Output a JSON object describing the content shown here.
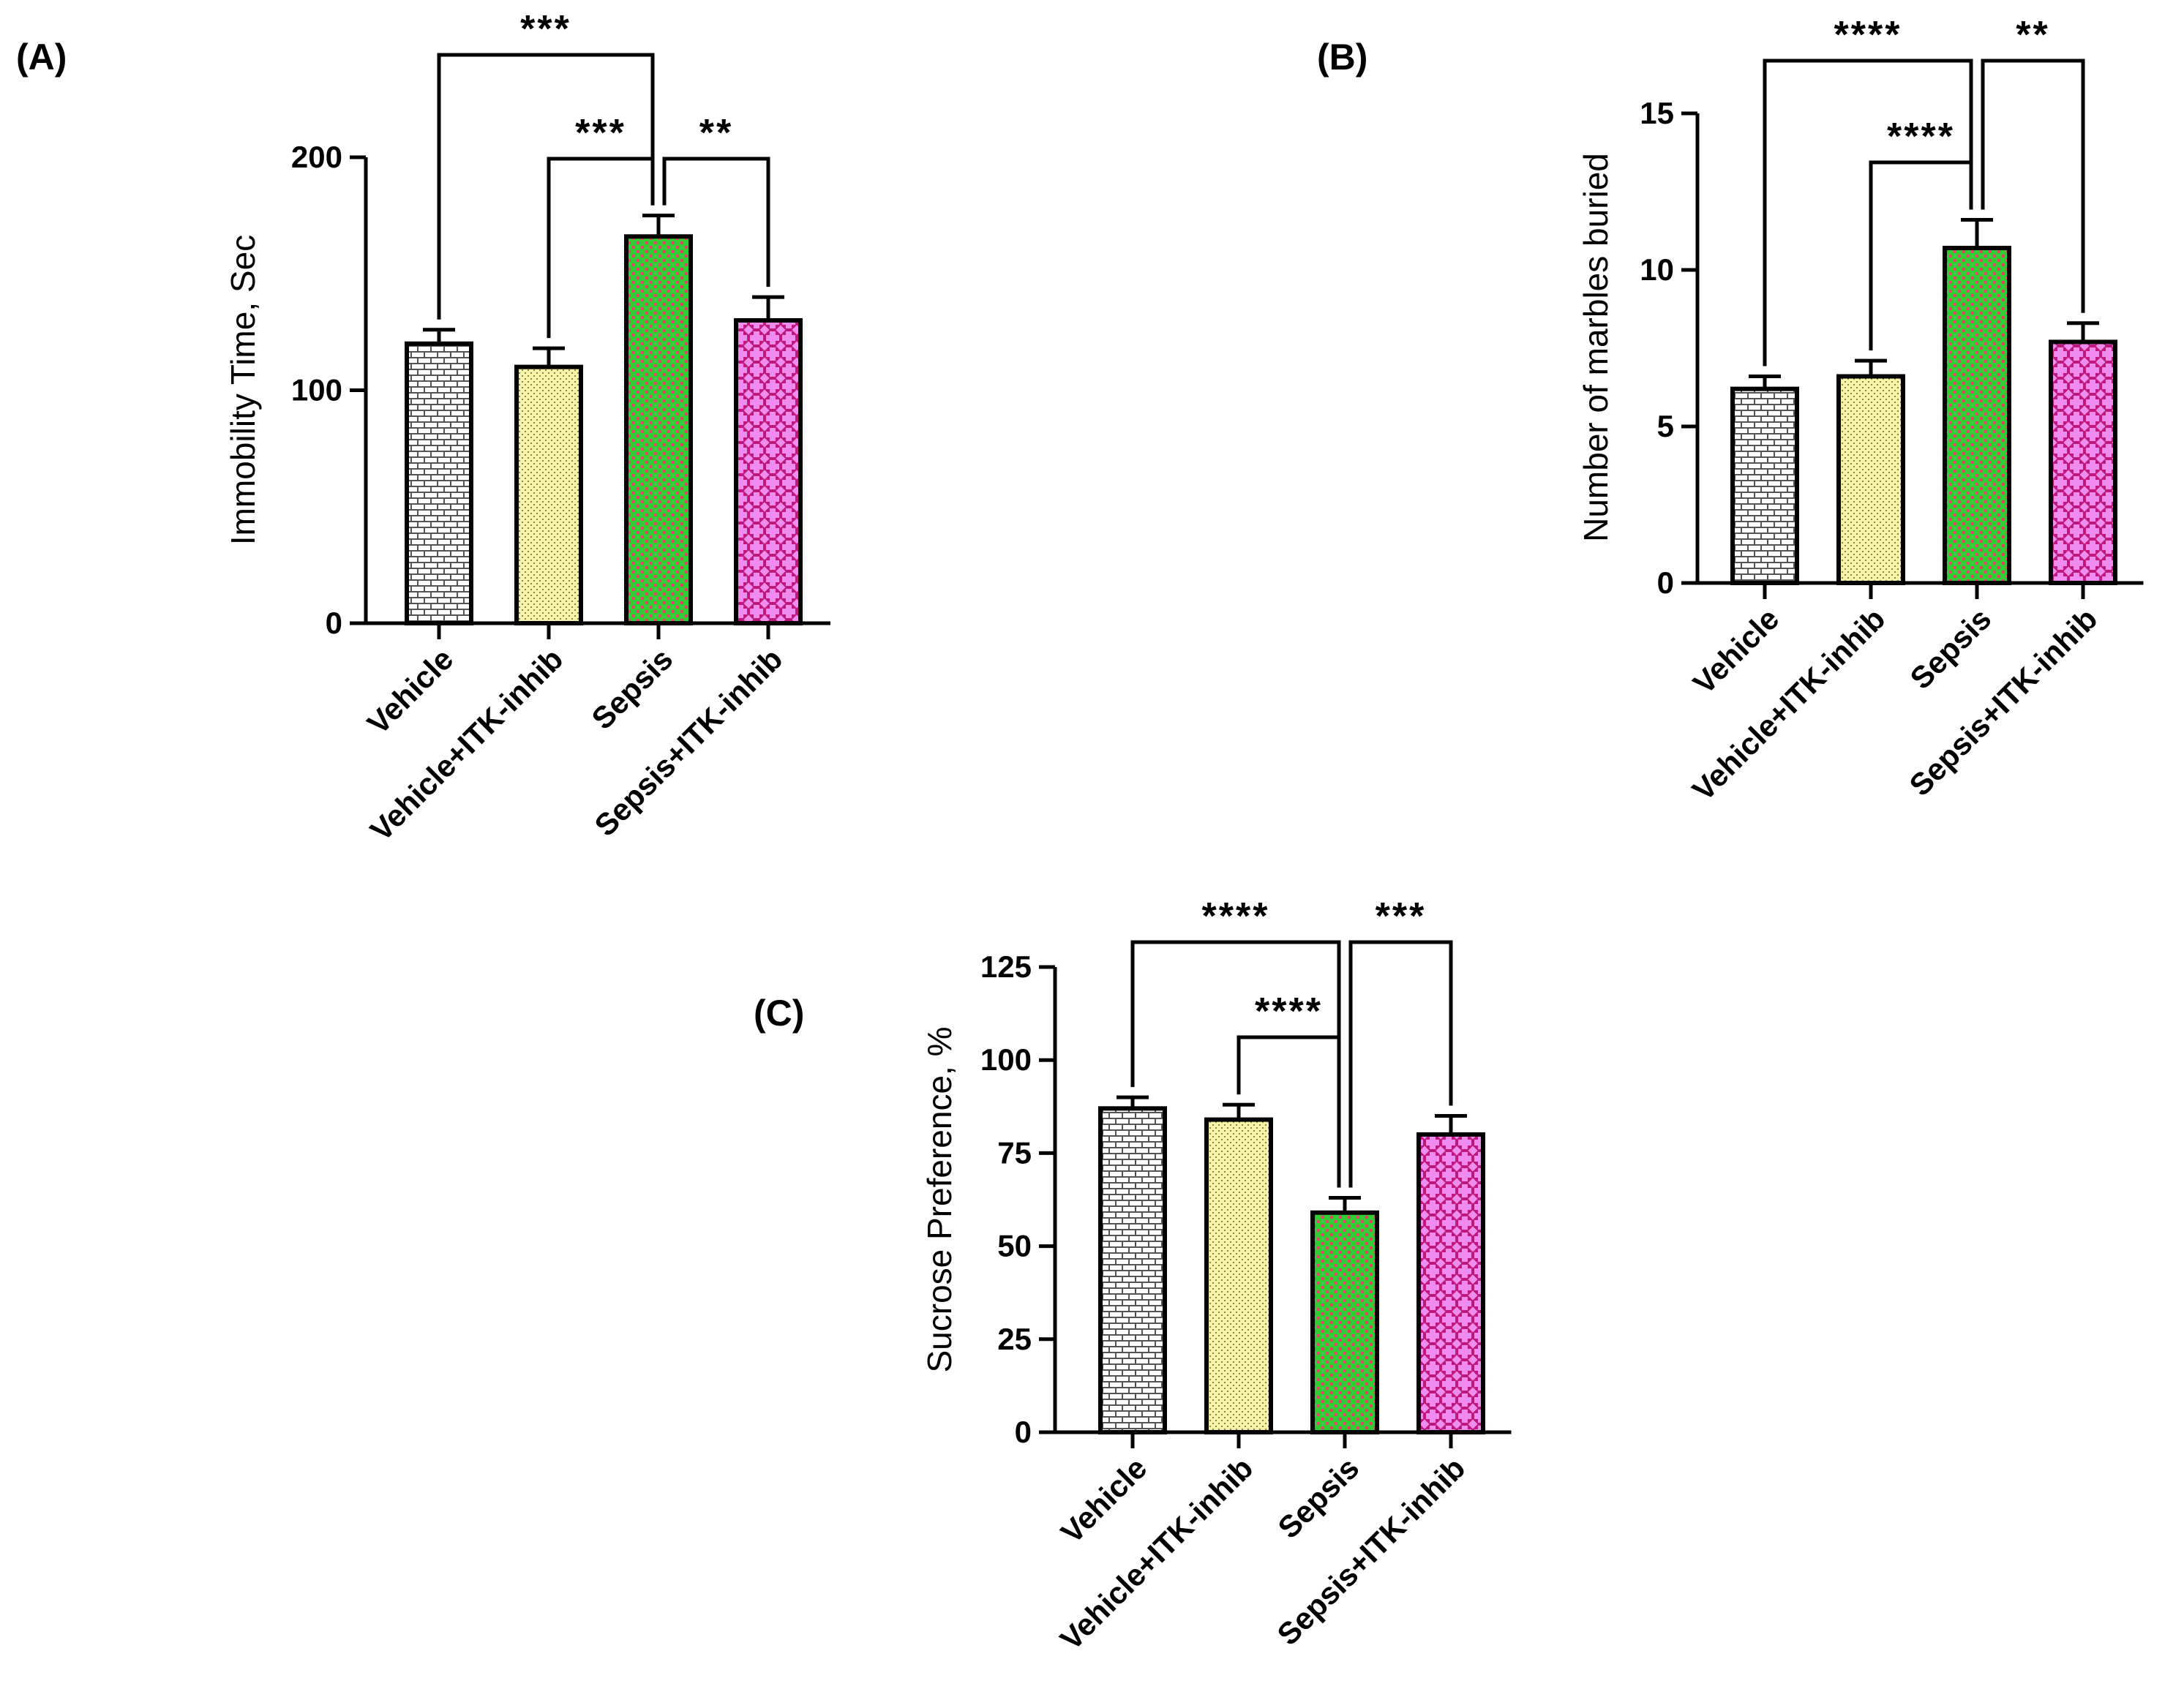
{
  "figure": {
    "title": ""
  },
  "categories": [
    "Vehicle",
    "Vehicle+ITK-inhib",
    "Sepsis",
    "Sepsis+ITK-inhib"
  ],
  "colors": {
    "vehicle_bg": "#ffffff",
    "vehicle_fg": "#555555",
    "vehicle_itk_bg": "#f6f3a8",
    "vehicle_itk_fg": "#8a8a50",
    "sepsis_bg": "#33cc33",
    "sepsis_fg": "#e0446a",
    "sepsis_itk_bg": "#f08cf0",
    "sepsis_itk_fg": "#c0187a",
    "axis": "#000000"
  },
  "chart_data": [
    {
      "panel": "(A)",
      "type": "bar",
      "ylabel": "Immobility Time, Sec",
      "xlabel": "",
      "ylim": [
        0,
        200
      ],
      "yticks": [
        0,
        100,
        200
      ],
      "categories": [
        "Vehicle",
        "Vehicle+ITK-inhib",
        "Sepsis",
        "Sepsis+ITK-inhib"
      ],
      "values": [
        120,
        110,
        166,
        130
      ],
      "errors": [
        6,
        8,
        9,
        10
      ],
      "significance": [
        {
          "from": 0,
          "to": 2,
          "label": "***"
        },
        {
          "from": 1,
          "to": 2,
          "label": "***"
        },
        {
          "from": 2,
          "to": 3,
          "label": "**"
        }
      ]
    },
    {
      "panel": "(B)",
      "type": "bar",
      "ylabel": "Number of marbles buried",
      "xlabel": "",
      "ylim": [
        0,
        15
      ],
      "yticks": [
        0,
        5,
        10,
        15
      ],
      "categories": [
        "Vehicle",
        "Vehicle+ITK-inhib",
        "Sepsis",
        "Sepsis+ITK-inhib"
      ],
      "values": [
        6.2,
        6.6,
        10.7,
        7.7
      ],
      "errors": [
        0.4,
        0.5,
        0.9,
        0.6
      ],
      "significance": [
        {
          "from": 0,
          "to": 2,
          "label": "****"
        },
        {
          "from": 1,
          "to": 2,
          "label": "****"
        },
        {
          "from": 2,
          "to": 3,
          "label": "**"
        }
      ]
    },
    {
      "panel": "(C)",
      "type": "bar",
      "ylabel": "Sucrose Preference, %",
      "xlabel": "",
      "ylim": [
        0,
        125
      ],
      "yticks": [
        0,
        25,
        50,
        75,
        100,
        125
      ],
      "categories": [
        "Vehicle",
        "Vehicle+ITK-inhib",
        "Sepsis",
        "Sepsis+ITK-inhib"
      ],
      "values": [
        87,
        84,
        59,
        80
      ],
      "errors": [
        3,
        4,
        4,
        5
      ],
      "significance": [
        {
          "from": 0,
          "to": 2,
          "label": "****"
        },
        {
          "from": 1,
          "to": 2,
          "label": "****"
        },
        {
          "from": 2,
          "to": 3,
          "label": "***"
        }
      ]
    }
  ]
}
